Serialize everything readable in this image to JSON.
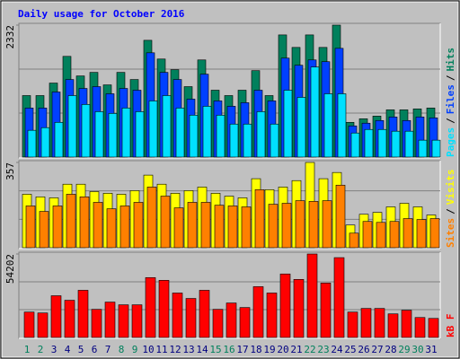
{
  "title": "Daily usage for October 2016",
  "days": [
    "1",
    "2",
    "3",
    "4",
    "5",
    "6",
    "7",
    "8",
    "9",
    "10",
    "11",
    "12",
    "13",
    "14",
    "15",
    "16",
    "17",
    "18",
    "19",
    "20",
    "21",
    "22",
    "23",
    "24",
    "25",
    "26",
    "27",
    "28",
    "29",
    "30",
    "31"
  ],
  "weekend_days": [
    "1",
    "2",
    "8",
    "9",
    "15",
    "16",
    "22",
    "23",
    "29",
    "30"
  ],
  "weekday_color": "#000080",
  "weekend_color": "#00805c",
  "legend_separator": "/",
  "chart_data": [
    {
      "type": "bar",
      "ylim": [
        0,
        2332
      ],
      "yticks": [
        2332
      ],
      "series": [
        {
          "name": "Hits",
          "color": "#00805c",
          "values": [
            1087,
            1087,
            1308,
            1780,
            1434,
            1497,
            1276,
            1497,
            1371,
            2064,
            1733,
            1544,
            1245,
            1717,
            1182,
            1087,
            1182,
            1528,
            1087,
            2159,
            1938,
            2159,
            1938,
            2332,
            614,
            677,
            725,
            835,
            835,
            851,
            867
          ]
        },
        {
          "name": "Files",
          "color": "#0040ff",
          "values": [
            867,
            867,
            1150,
            1371,
            1213,
            1245,
            1119,
            1213,
            1182,
            1843,
            1497,
            1371,
            1024,
            1465,
            993,
            898,
            961,
            1182,
            993,
            1749,
            1623,
            1717,
            1686,
            1922,
            551,
            599,
            646,
            709,
            646,
            709,
            693
          ]
        },
        {
          "name": "Pages",
          "color": "#00e0ff",
          "values": [
            473,
            520,
            614,
            1087,
            930,
            803,
            772,
            867,
            803,
            993,
            1087,
            867,
            741,
            898,
            741,
            583,
            583,
            803,
            583,
            1182,
            1056,
            1592,
            1119,
            1119,
            425,
            488,
            488,
            457,
            457,
            299,
            299
          ]
        }
      ]
    },
    {
      "type": "bar",
      "ylim": [
        0,
        357
      ],
      "yticks": [
        357
      ],
      "series": [
        {
          "name": "Visits",
          "color": "#ffff00",
          "values": [
            224,
            213,
            209,
            266,
            266,
            235,
            228,
            224,
            239,
            304,
            266,
            228,
            239,
            254,
            228,
            216,
            209,
            289,
            243,
            254,
            281,
            357,
            289,
            315,
            95,
            140,
            148,
            171,
            186,
            171,
            137
          ]
        },
        {
          "name": "Sites",
          "color": "#ff8000",
          "values": [
            175,
            152,
            175,
            224,
            213,
            190,
            163,
            175,
            190,
            254,
            216,
            167,
            190,
            190,
            178,
            175,
            171,
            243,
            182,
            186,
            197,
            194,
            197,
            262,
            61,
            110,
            106,
            110,
            122,
            118,
            122
          ]
        }
      ]
    },
    {
      "type": "bar",
      "ylim": [
        0,
        54202
      ],
      "yticks": [
        54202
      ],
      "series": [
        {
          "name": "kB F",
          "color": "#ff0000",
          "values": [
            16496,
            15907,
            27101,
            24155,
            30636,
            18264,
            22977,
            21210,
            21210,
            38884,
            37117,
            28868,
            25334,
            30636,
            18264,
            22388,
            19442,
            32993,
            28868,
            41241,
            37706,
            54202,
            35349,
            51845,
            16496,
            18853,
            18853,
            15318,
            17675,
            12961,
            12372
          ]
        }
      ]
    }
  ]
}
